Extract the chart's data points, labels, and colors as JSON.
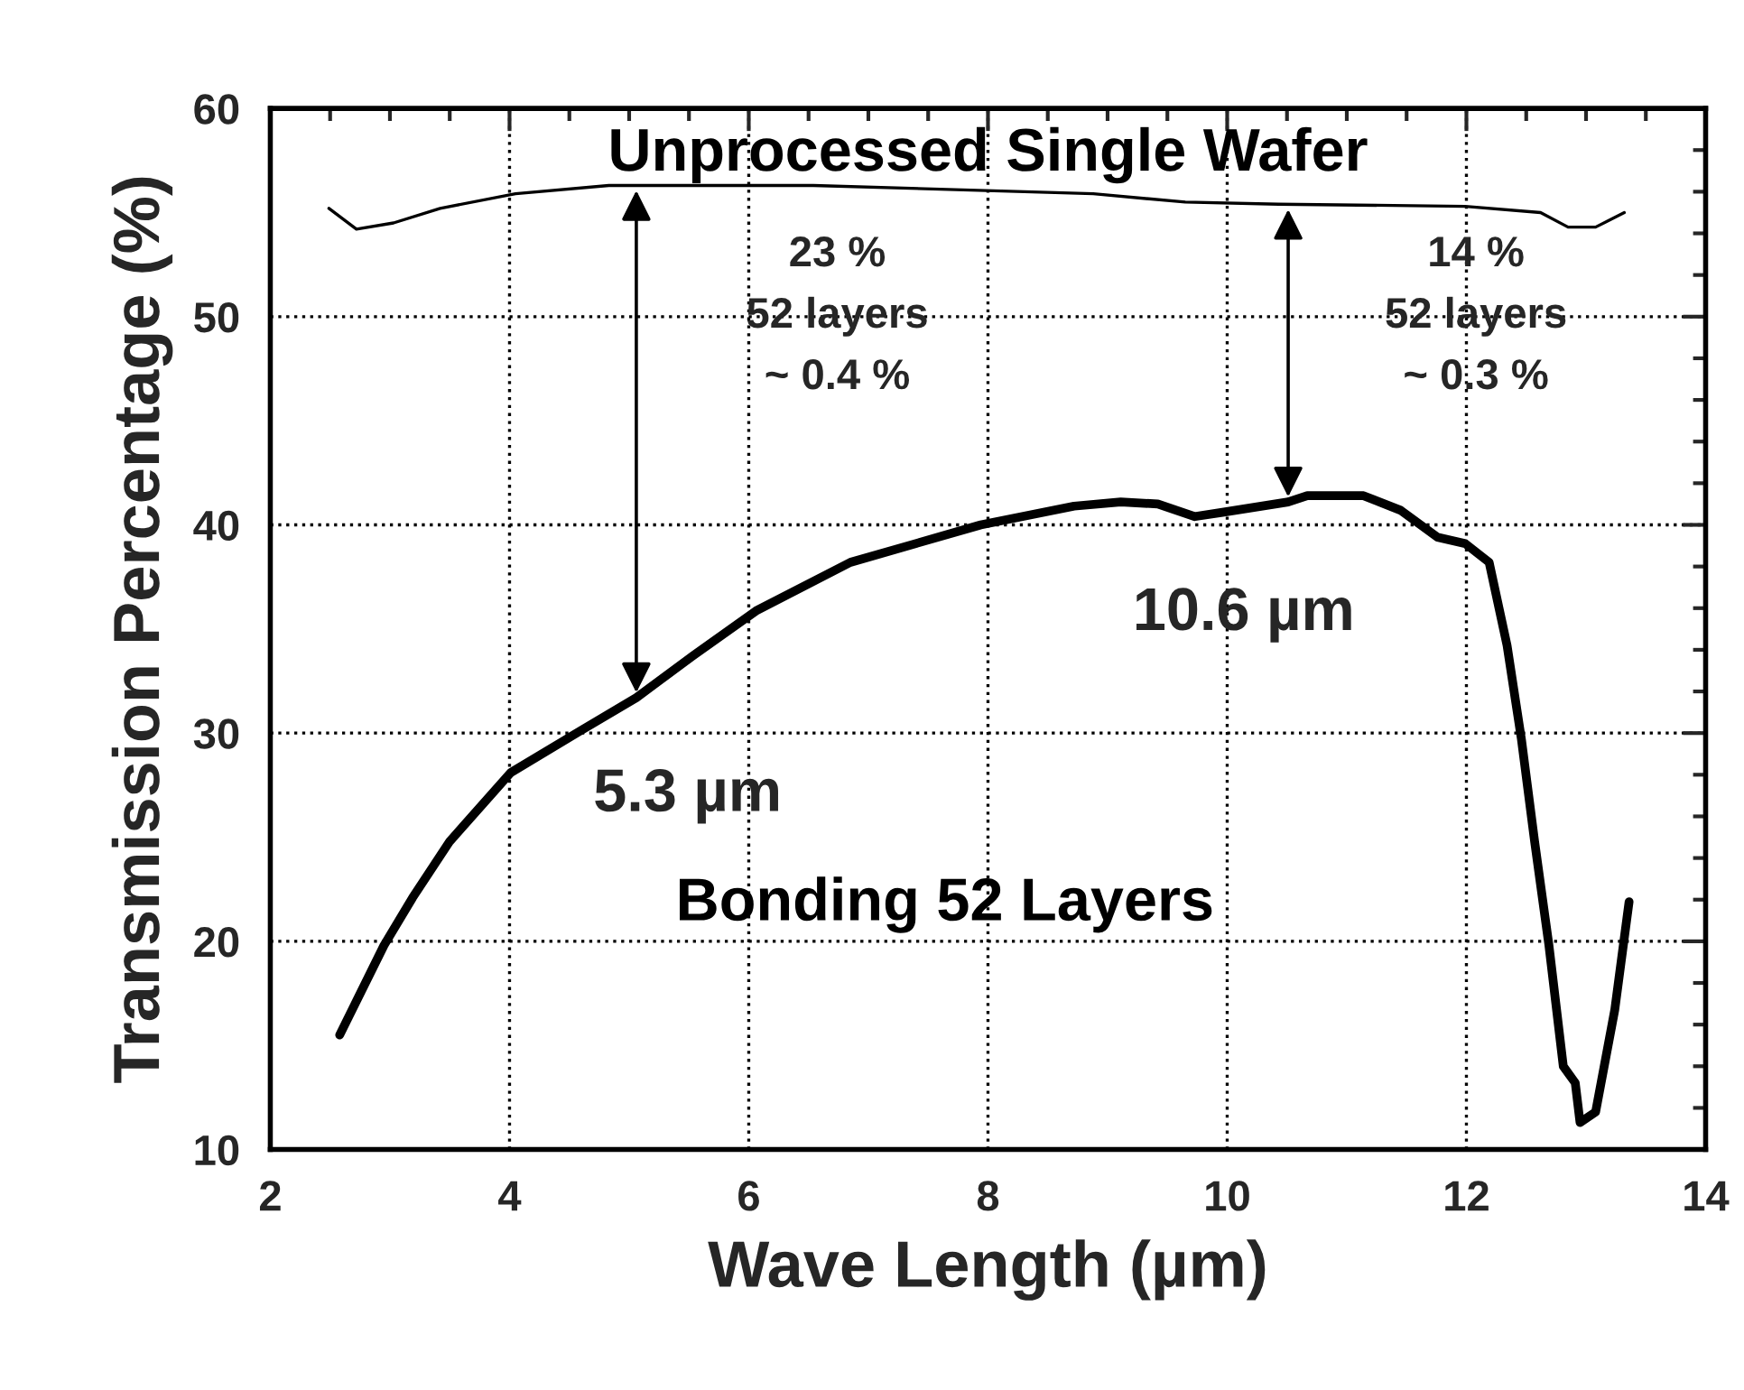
{
  "chart_data": {
    "type": "line",
    "xlabel": "Wave Length (µm)",
    "ylabel": "Transmission Percentage (%)",
    "xlim": [
      2,
      14
    ],
    "xticks": [
      2,
      4,
      6,
      8,
      10,
      12,
      14
    ],
    "ylim": [
      10,
      60
    ],
    "yticks": [
      10,
      20,
      30,
      40,
      50,
      60
    ],
    "grid": true,
    "legend": false,
    "marker": "none",
    "line_style": "solid",
    "series": [
      {
        "name": "Unprocessed Single Wafer",
        "color": "#000000",
        "x": [
          2.49,
          2.72,
          3.03,
          3.42,
          4.05,
          4.83,
          6.54,
          8.88,
          9.65,
          10.43,
          11.99,
          12.62,
          12.85,
          13.08,
          13.32
        ],
        "values": [
          55.2,
          54.2,
          54.5,
          55.2,
          55.9,
          56.3,
          56.3,
          55.9,
          55.5,
          55.4,
          55.3,
          55.0,
          54.3,
          54.3,
          55.0
        ]
      },
      {
        "name": "Bonding 52 Layers",
        "color": "#000000",
        "x": [
          2.58,
          2.95,
          3.19,
          3.5,
          4.01,
          4.59,
          5.06,
          5.53,
          6.07,
          6.85,
          7.94,
          8.72,
          9.11,
          9.42,
          9.73,
          9.96,
          10.51,
          10.67,
          11.14,
          11.45,
          11.76,
          11.99,
          12.19,
          12.34,
          12.46,
          12.57,
          12.69,
          12.81,
          12.91,
          12.95,
          13.08,
          13.24,
          13.36
        ],
        "values": [
          15.5,
          19.8,
          22.1,
          24.8,
          28.1,
          30.1,
          31.7,
          33.7,
          35.9,
          38.2,
          40.0,
          40.9,
          41.1,
          41.0,
          40.4,
          40.6,
          41.1,
          41.4,
          41.4,
          40.7,
          39.4,
          39.1,
          38.2,
          34.2,
          29.7,
          24.8,
          19.8,
          14.0,
          13.2,
          11.3,
          11.8,
          16.7,
          21.9
        ]
      }
    ],
    "annotations": [
      {
        "text": "5.3 µm",
        "x": 5.06,
        "y": 31.7
      },
      {
        "text": "10.6 µm",
        "x": 10.51,
        "y": 41.1
      },
      "23 %\n52 layers\n~ 0.4 %",
      "14 %\n52 layers\n~ 0.3 %"
    ]
  }
}
